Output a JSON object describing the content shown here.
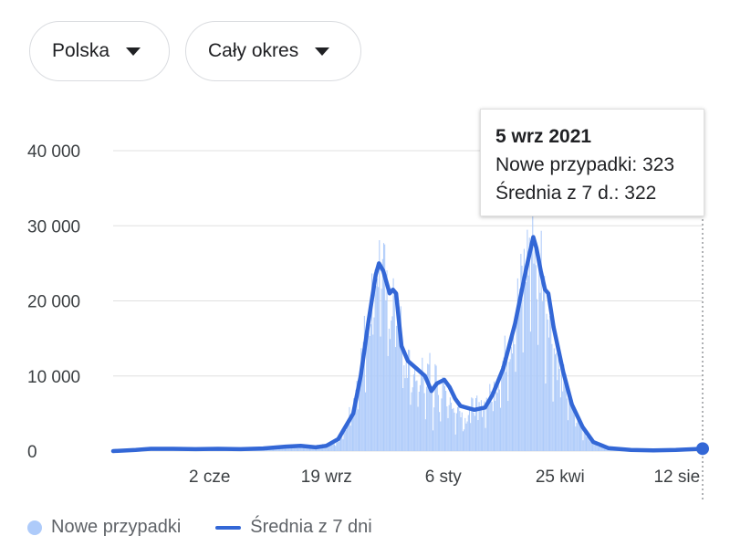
{
  "filters": {
    "region": "Polska",
    "period": "Cały okres"
  },
  "tooltip": {
    "date": "5 wrz 2021",
    "cases_label": "Nowe przypadki:",
    "cases_value": "323",
    "avg_label": "Średnia z 7 d.:",
    "avg_value": "322"
  },
  "legend": {
    "cases": "Nowe przypadki",
    "average": "Średnia z 7 dni"
  },
  "colors": {
    "bars": "#aecbfa",
    "line": "#3367d6",
    "grid": "#e0e0e0",
    "axis_text": "#5f6368"
  },
  "chart_data": {
    "type": "bar",
    "x_type": "date",
    "xlim": [
      "2020-03-04",
      "2021-09-05"
    ],
    "ylim": [
      0,
      40000
    ],
    "y_ticks": [
      {
        "value": 0,
        "label": "0"
      },
      {
        "value": 10000,
        "label": "10 000"
      },
      {
        "value": 20000,
        "label": "20 000"
      },
      {
        "value": 30000,
        "label": "30 000"
      },
      {
        "value": 40000,
        "label": "40 000"
      }
    ],
    "x_ticks": [
      {
        "date": "2020-06-02",
        "label": "2 cze"
      },
      {
        "date": "2020-09-19",
        "label": "19 wrz"
      },
      {
        "date": "2021-01-06",
        "label": "6 sty"
      },
      {
        "date": "2021-04-25",
        "label": "25 kwi"
      },
      {
        "date": "2021-08-12",
        "label": "12 sie"
      }
    ],
    "series": [
      {
        "name": "Nowe przypadki",
        "kind": "bar",
        "points": [
          [
            "2020-03-04",
            0
          ],
          [
            "2020-03-25",
            250
          ],
          [
            "2020-04-15",
            350
          ],
          [
            "2020-05-06",
            300
          ],
          [
            "2020-05-27",
            350
          ],
          [
            "2020-06-17",
            350
          ],
          [
            "2020-07-08",
            250
          ],
          [
            "2020-07-29",
            500
          ],
          [
            "2020-08-19",
            700
          ],
          [
            "2020-09-02",
            650
          ],
          [
            "2020-09-19",
            850
          ],
          [
            "2020-09-30",
            1500
          ],
          [
            "2020-10-07",
            3500
          ],
          [
            "2020-10-14",
            7500
          ],
          [
            "2020-10-21",
            13000
          ],
          [
            "2020-10-28",
            20000
          ],
          [
            "2020-11-04",
            26000
          ],
          [
            "2020-11-08",
            27000
          ],
          [
            "2020-11-12",
            24000
          ],
          [
            "2020-11-16",
            18000
          ],
          [
            "2020-11-19",
            23000
          ],
          [
            "2020-11-22",
            20000
          ],
          [
            "2020-11-26",
            19000
          ],
          [
            "2020-11-30",
            11000
          ],
          [
            "2020-12-04",
            13000
          ],
          [
            "2020-12-07",
            9000
          ],
          [
            "2020-12-11",
            12000
          ],
          [
            "2020-12-14",
            7500
          ],
          [
            "2020-12-17",
            12500
          ],
          [
            "2020-12-20",
            9000
          ],
          [
            "2020-12-24",
            11500
          ],
          [
            "2020-12-27",
            5000
          ],
          [
            "2020-12-30",
            13000
          ],
          [
            "2021-01-02",
            7000
          ],
          [
            "2021-01-06",
            9000
          ],
          [
            "2021-01-09",
            8000
          ],
          [
            "2021-01-13",
            7500
          ],
          [
            "2021-01-17",
            4500
          ],
          [
            "2021-01-21",
            7000
          ],
          [
            "2021-01-25",
            4000
          ],
          [
            "2021-01-30",
            6000
          ],
          [
            "2021-02-04",
            6500
          ],
          [
            "2021-02-10",
            6000
          ],
          [
            "2021-02-17",
            7500
          ],
          [
            "2021-02-24",
            9500
          ],
          [
            "2021-03-03",
            13000
          ],
          [
            "2021-03-10",
            16000
          ],
          [
            "2021-03-17",
            22000
          ],
          [
            "2021-03-24",
            27000
          ],
          [
            "2021-03-28",
            29000
          ],
          [
            "2021-03-31",
            32500
          ],
          [
            "2021-04-04",
            22000
          ],
          [
            "2021-04-07",
            28000
          ],
          [
            "2021-04-11",
            20000
          ],
          [
            "2021-04-14",
            21000
          ],
          [
            "2021-04-18",
            15000
          ],
          [
            "2021-04-22",
            13000
          ],
          [
            "2021-04-28",
            10000
          ],
          [
            "2021-05-05",
            6500
          ],
          [
            "2021-05-12",
            4000
          ],
          [
            "2021-05-19",
            2500
          ],
          [
            "2021-05-26",
            1200
          ],
          [
            "2021-06-09",
            400
          ],
          [
            "2021-06-30",
            150
          ],
          [
            "2021-07-21",
            100
          ],
          [
            "2021-08-11",
            200
          ],
          [
            "2021-09-05",
            323
          ]
        ]
      },
      {
        "name": "Średnia z 7 dni",
        "kind": "line",
        "points": [
          [
            "2020-03-04",
            0
          ],
          [
            "2020-03-25",
            150
          ],
          [
            "2020-04-08",
            300
          ],
          [
            "2020-04-29",
            300
          ],
          [
            "2020-05-20",
            250
          ],
          [
            "2020-06-10",
            300
          ],
          [
            "2020-07-01",
            250
          ],
          [
            "2020-07-22",
            350
          ],
          [
            "2020-08-12",
            600
          ],
          [
            "2020-08-26",
            700
          ],
          [
            "2020-09-09",
            500
          ],
          [
            "2020-09-19",
            700
          ],
          [
            "2020-09-30",
            1600
          ],
          [
            "2020-10-14",
            5000
          ],
          [
            "2020-10-21",
            10000
          ],
          [
            "2020-10-28",
            17000
          ],
          [
            "2020-11-04",
            23500
          ],
          [
            "2020-11-07",
            25000
          ],
          [
            "2020-11-11",
            24000
          ],
          [
            "2020-11-17",
            21000
          ],
          [
            "2020-11-20",
            21500
          ],
          [
            "2020-11-23",
            21000
          ],
          [
            "2020-11-28",
            14000
          ],
          [
            "2020-12-04",
            12000
          ],
          [
            "2020-12-12",
            11000
          ],
          [
            "2020-12-20",
            10000
          ],
          [
            "2020-12-26",
            8000
          ],
          [
            "2020-12-31",
            9000
          ],
          [
            "2021-01-07",
            9500
          ],
          [
            "2021-01-12",
            8500
          ],
          [
            "2021-01-17",
            7000
          ],
          [
            "2021-01-22",
            6000
          ],
          [
            "2021-02-04",
            5500
          ],
          [
            "2021-02-14",
            5800
          ],
          [
            "2021-02-21",
            7500
          ],
          [
            "2021-03-03",
            11000
          ],
          [
            "2021-03-14",
            17000
          ],
          [
            "2021-03-24",
            24000
          ],
          [
            "2021-03-31",
            28500
          ],
          [
            "2021-04-03",
            27000
          ],
          [
            "2021-04-07",
            24000
          ],
          [
            "2021-04-11",
            21500
          ],
          [
            "2021-04-14",
            21000
          ],
          [
            "2021-04-19",
            16500
          ],
          [
            "2021-04-28",
            10500
          ],
          [
            "2021-05-06",
            6200
          ],
          [
            "2021-05-16",
            3200
          ],
          [
            "2021-05-26",
            1200
          ],
          [
            "2021-06-09",
            400
          ],
          [
            "2021-06-30",
            150
          ],
          [
            "2021-07-21",
            100
          ],
          [
            "2021-08-11",
            150
          ],
          [
            "2021-09-05",
            322
          ]
        ]
      }
    ]
  }
}
